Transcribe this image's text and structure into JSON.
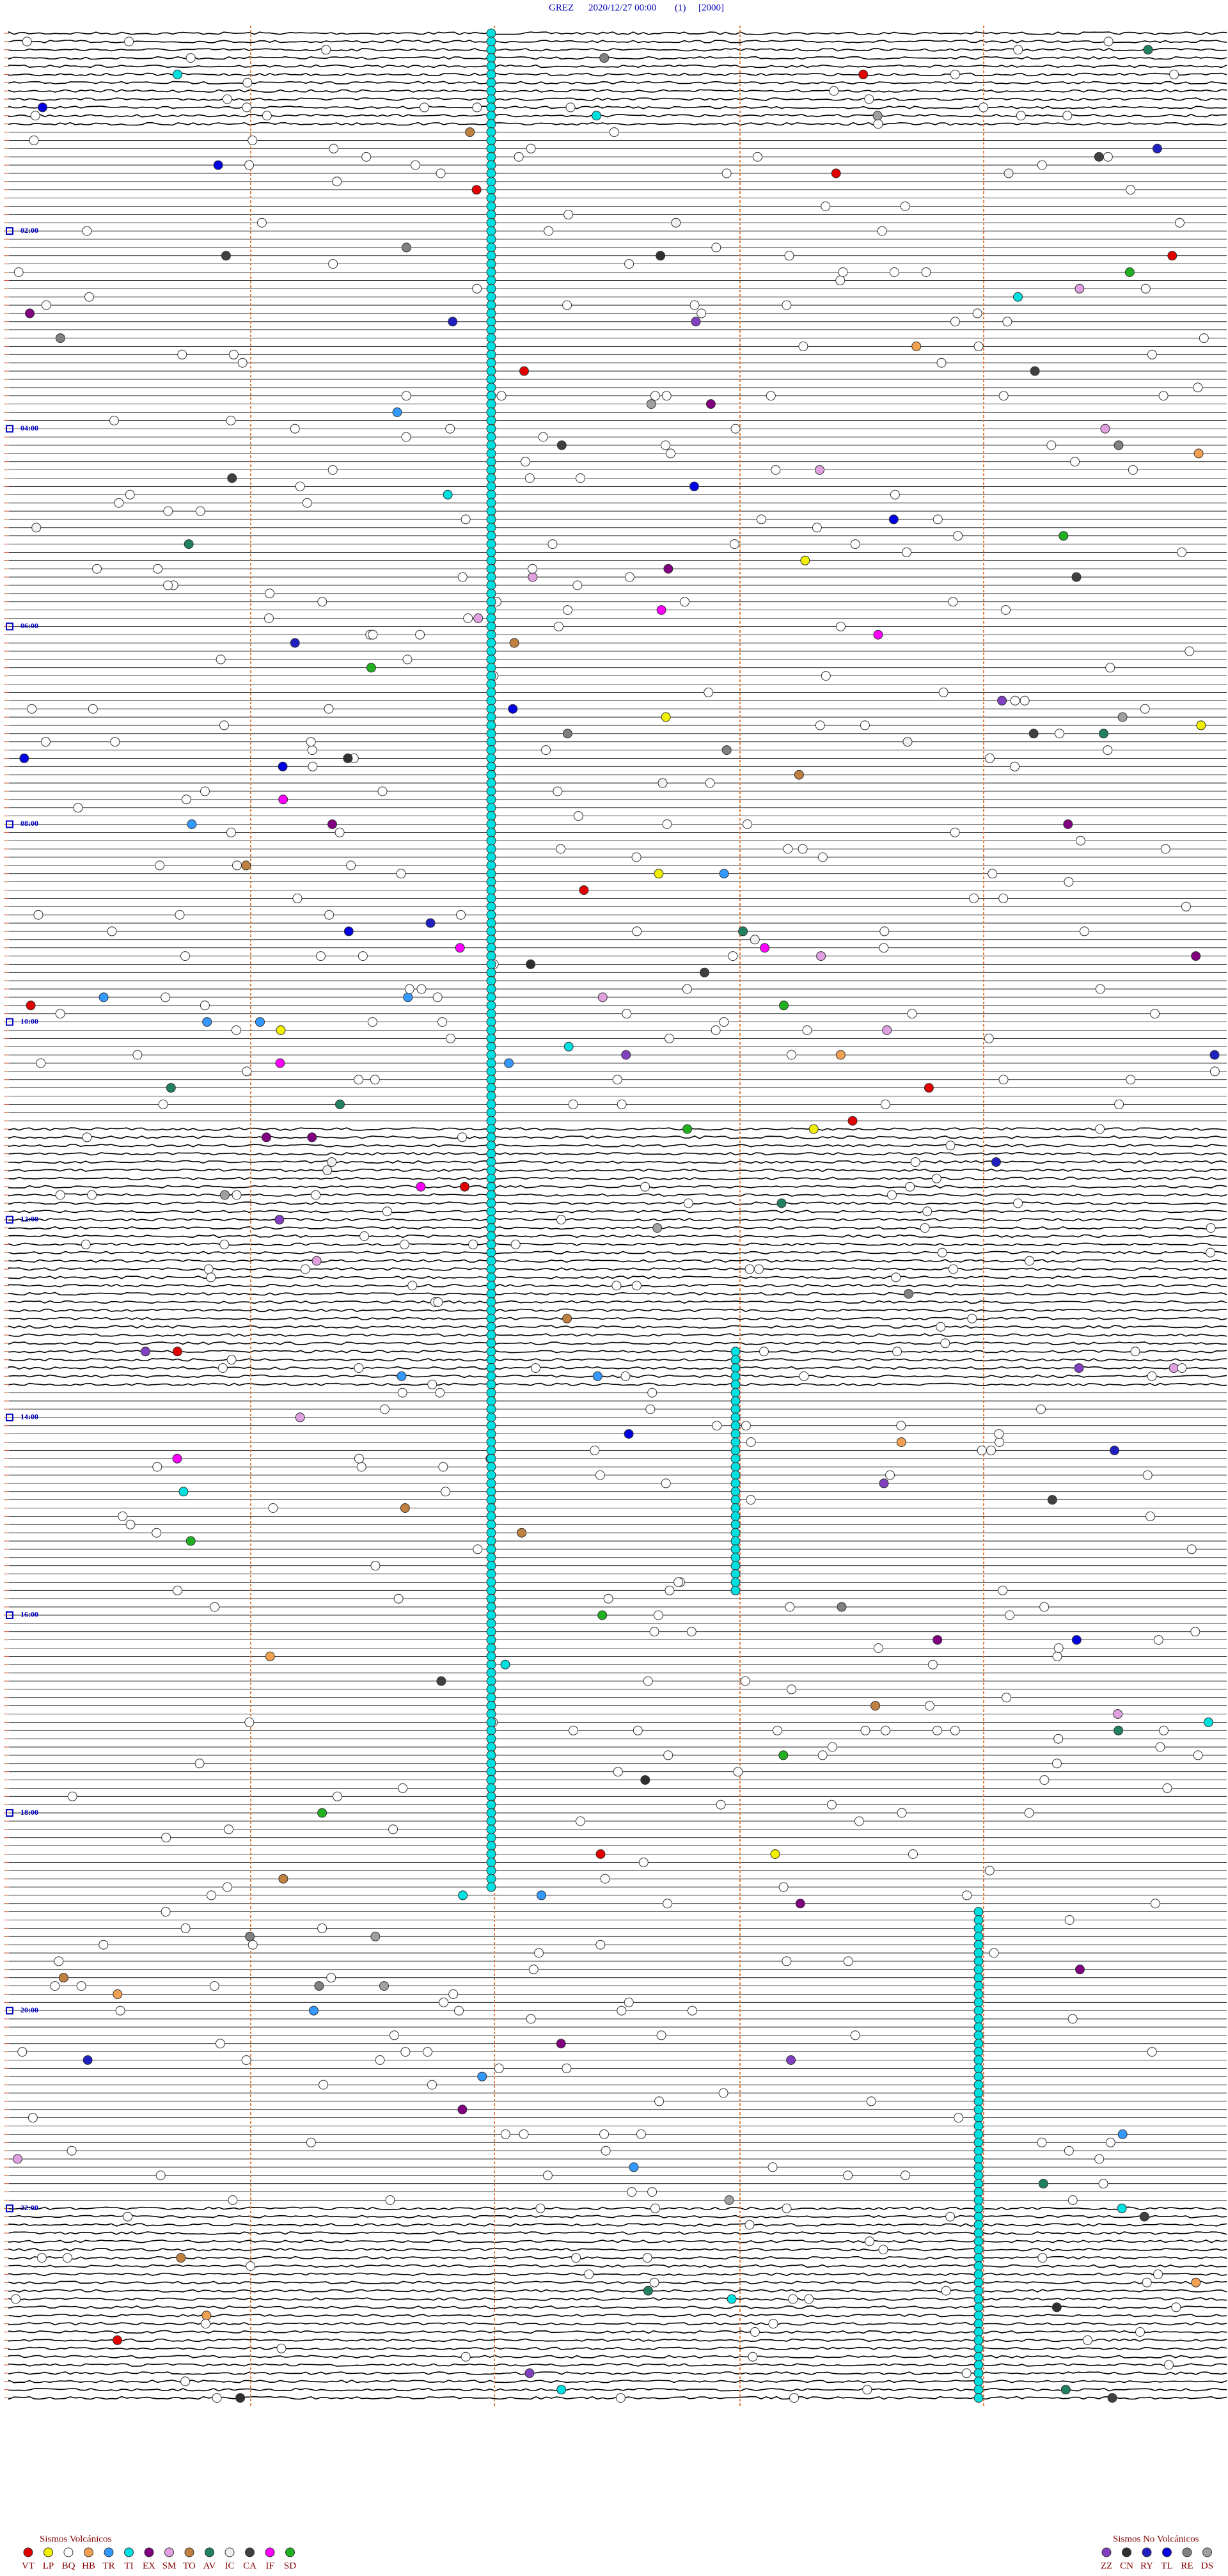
{
  "header": {
    "station": "GREZ",
    "datetime": "2020/12/27 00:00",
    "channel": "(1)",
    "scale": "[2000]"
  },
  "hour_labels": [
    "02:00",
    "04:00",
    "06:00",
    "08:00",
    "10:00",
    "12:00",
    "14:00",
    "16:00",
    "18:00",
    "20:00",
    "22:00"
  ],
  "legend_volcanic": {
    "title": "Sismos Volcánicos",
    "items": [
      {
        "code": "VT",
        "color": "#e00000"
      },
      {
        "code": "LP",
        "color": "#f0f000"
      },
      {
        "code": "BQ",
        "color": "#ffffff"
      },
      {
        "code": "HB",
        "color": "#f0a050"
      },
      {
        "code": "TR",
        "color": "#3399ff"
      },
      {
        "code": "TI",
        "color": "#00e0e0"
      },
      {
        "code": "EX",
        "color": "#800080"
      },
      {
        "code": "SM",
        "color": "#e0a0e0"
      },
      {
        "code": "TO",
        "color": "#c08040"
      },
      {
        "code": "AV",
        "color": "#208060"
      },
      {
        "code": "IC",
        "color": "#f0f0f0"
      },
      {
        "code": "CA",
        "color": "#404040"
      },
      {
        "code": "IF",
        "color": "#ff00ff"
      },
      {
        "code": "SD",
        "color": "#20b020"
      }
    ]
  },
  "legend_non_volcanic": {
    "title": "Sismos No Volcánicos",
    "items": [
      {
        "code": "ZZ",
        "color": "#8040c0"
      },
      {
        "code": "CN",
        "color": "#303030"
      },
      {
        "code": "RY",
        "color": "#2020c0"
      },
      {
        "code": "TL",
        "color": "#0000e0"
      },
      {
        "code": "RE",
        "color": "#808080"
      },
      {
        "code": "DS",
        "color": "#a0a0a0"
      }
    ]
  }
}
